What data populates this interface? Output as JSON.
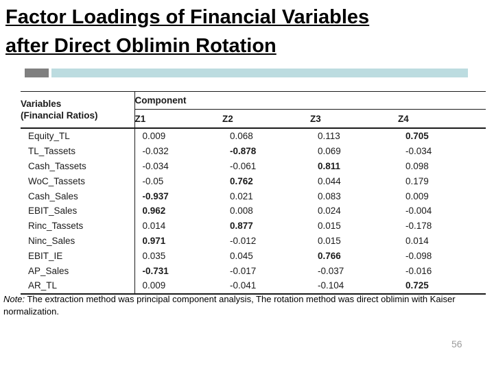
{
  "slide": {
    "title_line1": "Factor Loadings of Financial Variables",
    "title_line2": "after Direct Oblimin Rotation",
    "page_number": "56"
  },
  "decoration": {
    "gray_block_color": "#7f7f7f",
    "blue_bar_color": "#bcdce0"
  },
  "table": {
    "header": {
      "variables_line1": "Variables",
      "variables_line2": "(Financial Ratios)",
      "component_label": "Component",
      "components": [
        "Z1",
        "Z2",
        "Z3",
        "Z4"
      ]
    },
    "rows": [
      {
        "variable": "Equity_TL",
        "values": [
          "0.009",
          "0.068",
          "0.113",
          "0.705"
        ],
        "bold_index": 3
      },
      {
        "variable": "TL_Tassets",
        "values": [
          "-0.032",
          "-0.878",
          "0.069",
          "-0.034"
        ],
        "bold_index": 1
      },
      {
        "variable": "Cash_Tassets",
        "values": [
          "-0.034",
          "-0.061",
          "0.811",
          "0.098"
        ],
        "bold_index": 2
      },
      {
        "variable": "WoC_Tassets",
        "values": [
          "-0.05",
          "0.762",
          "0.044",
          "0.179"
        ],
        "bold_index": 1
      },
      {
        "variable": "Cash_Sales",
        "values": [
          "-0.937",
          "0.021",
          "0.083",
          "0.009"
        ],
        "bold_index": 0
      },
      {
        "variable": "EBIT_Sales",
        "values": [
          "0.962",
          "0.008",
          "0.024",
          "-0.004"
        ],
        "bold_index": 0
      },
      {
        "variable": "Rinc_Tassets",
        "values": [
          "0.014",
          "0.877",
          "0.015",
          "-0.178"
        ],
        "bold_index": 1
      },
      {
        "variable": "Ninc_Sales",
        "values": [
          "0.971",
          "-0.012",
          "0.015",
          "0.014"
        ],
        "bold_index": 0
      },
      {
        "variable": "EBIT_IE",
        "values": [
          "0.035",
          "0.045",
          "0.766",
          "-0.098"
        ],
        "bold_index": 2
      },
      {
        "variable": "AP_Sales",
        "values": [
          "-0.731",
          "-0.017",
          "-0.037",
          "-0.016"
        ],
        "bold_index": 0
      },
      {
        "variable": "AR_TL",
        "values": [
          "0.009",
          "-0.041",
          "-0.104",
          "0.725"
        ],
        "bold_index": 3
      }
    ]
  },
  "note": {
    "prefix": "Note:",
    "text": " The extraction method was principal component analysis, The rotation method was direct oblimin with Kaiser normalization."
  }
}
